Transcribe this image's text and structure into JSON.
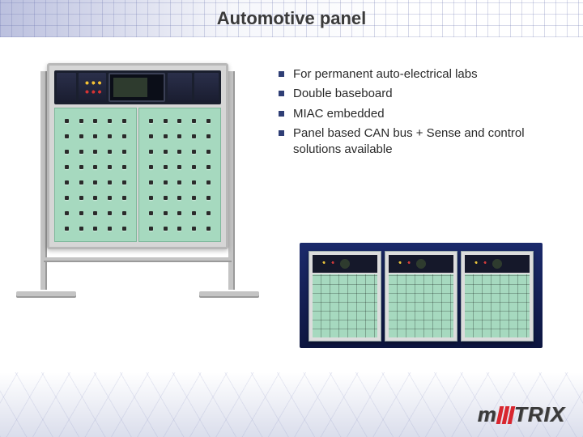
{
  "title": "Automotive panel",
  "bullets": [
    "For permanent auto-electrical labs",
    "Double baseboard",
    "MIAC embedded",
    "Panel based CAN bus + Sense and control solutions available"
  ],
  "logo_text": "TRIX",
  "styling": {
    "page_bg": "#ffffff",
    "title_color": "#3a3a3a",
    "title_fontsize": 22,
    "bullet_color": "#2a2a2a",
    "bullet_fontsize": 15,
    "bullet_marker_color": "#2f3e75",
    "board_color": "#a6d9bf",
    "control_strip_bg": "#1a1f2e",
    "frame_color": "#d6d6d6",
    "thumb_row_bg_top": "#1b2a6b",
    "thumb_row_bg_bottom": "#0d1640",
    "logo_accent": "#d8262f",
    "band_grid_color": "rgba(100,110,170,0.25)"
  },
  "main_panel": {
    "peg_columns_per_half": 5,
    "peg_rows": 8,
    "halves": 2
  },
  "thumbnails": {
    "count": 3
  }
}
